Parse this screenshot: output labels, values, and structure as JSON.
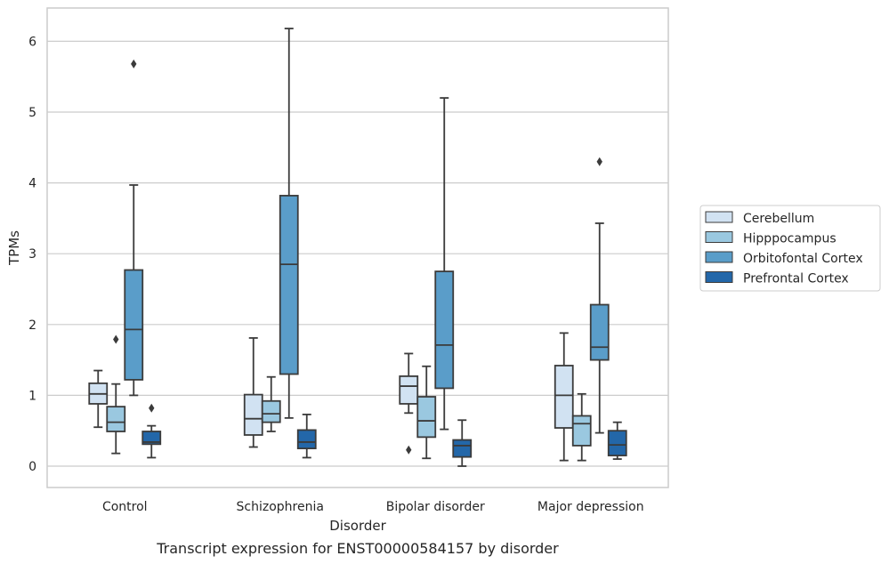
{
  "chart_data": {
    "type": "box",
    "caption": "Transcript expression for ENST00000584157 by disorder",
    "xlabel": "Disorder",
    "ylabel": "TPMs",
    "ylim": [
      -0.3,
      6.5
    ],
    "yticks": [
      0,
      1,
      2,
      3,
      4,
      5,
      6
    ],
    "grid": "horizontal",
    "legend_position": "right",
    "categories": [
      "Control",
      "Schizophrenia",
      "Bipolar disorder",
      "Major depression"
    ],
    "series": [
      {
        "name": "Cerebellum",
        "color": "#d1e2f2",
        "boxes": [
          {
            "whisker_low": 0.55,
            "q1": 0.88,
            "median": 1.02,
            "q3": 1.17,
            "whisker_high": 1.35,
            "outliers": []
          },
          {
            "whisker_low": 0.27,
            "q1": 0.44,
            "median": 0.67,
            "q3": 1.01,
            "whisker_high": 1.81,
            "outliers": []
          },
          {
            "whisker_low": 0.75,
            "q1": 0.88,
            "median": 1.13,
            "q3": 1.27,
            "whisker_high": 1.59,
            "outliers": [
              0.23
            ]
          },
          {
            "whisker_low": 0.08,
            "q1": 0.54,
            "median": 1.0,
            "q3": 1.42,
            "whisker_high": 1.88,
            "outliers": []
          }
        ]
      },
      {
        "name": "Hipppocampus",
        "color": "#9ac8e0",
        "boxes": [
          {
            "whisker_low": 0.18,
            "q1": 0.49,
            "median": 0.62,
            "q3": 0.84,
            "whisker_high": 1.16,
            "outliers": [
              1.79
            ]
          },
          {
            "whisker_low": 0.49,
            "q1": 0.62,
            "median": 0.74,
            "q3": 0.92,
            "whisker_high": 1.26,
            "outliers": []
          },
          {
            "whisker_low": 0.11,
            "q1": 0.41,
            "median": 0.64,
            "q3": 0.98,
            "whisker_high": 1.41,
            "outliers": []
          },
          {
            "whisker_low": 0.08,
            "q1": 0.29,
            "median": 0.6,
            "q3": 0.71,
            "whisker_high": 1.02,
            "outliers": []
          }
        ]
      },
      {
        "name": "Orbitofontal Cortex",
        "color": "#5a9dc9",
        "boxes": [
          {
            "whisker_low": 1.0,
            "q1": 1.22,
            "median": 1.93,
            "q3": 2.77,
            "whisker_high": 3.97,
            "outliers": [
              5.68
            ]
          },
          {
            "whisker_low": 0.68,
            "q1": 1.3,
            "median": 2.85,
            "q3": 3.82,
            "whisker_high": 6.18,
            "outliers": []
          },
          {
            "whisker_low": 0.52,
            "q1": 1.1,
            "median": 1.71,
            "q3": 2.75,
            "whisker_high": 5.2,
            "outliers": []
          },
          {
            "whisker_low": 0.47,
            "q1": 1.5,
            "median": 1.68,
            "q3": 2.28,
            "whisker_high": 3.43,
            "outliers": [
              4.3
            ]
          }
        ]
      },
      {
        "name": "Prefrontal Cortex",
        "color": "#2367a9",
        "boxes": [
          {
            "whisker_low": 0.12,
            "q1": 0.31,
            "median": 0.34,
            "q3": 0.49,
            "whisker_high": 0.57,
            "outliers": [
              0.82
            ]
          },
          {
            "whisker_low": 0.12,
            "q1": 0.25,
            "median": 0.34,
            "q3": 0.51,
            "whisker_high": 0.73,
            "outliers": []
          },
          {
            "whisker_low": 0.0,
            "q1": 0.13,
            "median": 0.29,
            "q3": 0.37,
            "whisker_high": 0.65,
            "outliers": []
          },
          {
            "whisker_low": 0.1,
            "q1": 0.15,
            "median": 0.3,
            "q3": 0.5,
            "whisker_high": 0.62,
            "outliers": []
          }
        ]
      }
    ]
  }
}
